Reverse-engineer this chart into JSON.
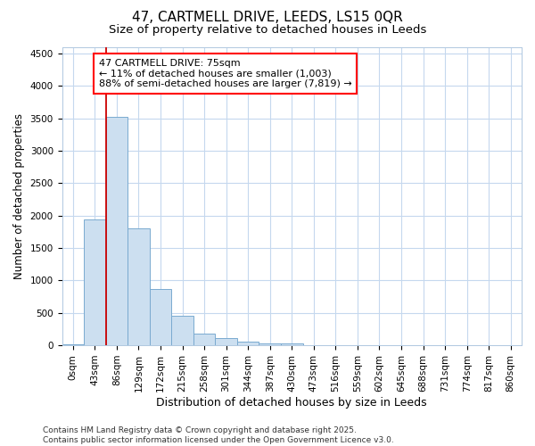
{
  "title": "47, CARTMELL DRIVE, LEEDS, LS15 0QR",
  "subtitle": "Size of property relative to detached houses in Leeds",
  "xlabel": "Distribution of detached houses by size in Leeds",
  "ylabel": "Number of detached properties",
  "bar_color": "#ccdff0",
  "bar_edge_color": "#7aaad0",
  "bar_edge_width": 0.7,
  "categories": [
    "0sqm",
    "43sqm",
    "86sqm",
    "129sqm",
    "172sqm",
    "215sqm",
    "258sqm",
    "301sqm",
    "344sqm",
    "387sqm",
    "430sqm",
    "473sqm",
    "516sqm",
    "559sqm",
    "602sqm",
    "645sqm",
    "688sqm",
    "731sqm",
    "774sqm",
    "817sqm",
    "860sqm"
  ],
  "values": [
    20,
    1940,
    3520,
    1800,
    870,
    450,
    175,
    105,
    60,
    35,
    25,
    5,
    0,
    0,
    0,
    0,
    0,
    0,
    0,
    0,
    0
  ],
  "ylim": [
    0,
    4600
  ],
  "yticks": [
    0,
    500,
    1000,
    1500,
    2000,
    2500,
    3000,
    3500,
    4000,
    4500
  ],
  "red_line_x": 2.0,
  "annotation_text": "47 CARTMELL DRIVE: 75sqm\n← 11% of detached houses are smaller (1,003)\n88% of semi-detached houses are larger (7,819) →",
  "grid_color": "#c5d8ee",
  "bg_color": "#ffffff",
  "footer": "Contains HM Land Registry data © Crown copyright and database right 2025.\nContains public sector information licensed under the Open Government Licence v3.0.",
  "title_fontsize": 11,
  "subtitle_fontsize": 9.5,
  "xlabel_fontsize": 9,
  "ylabel_fontsize": 8.5,
  "tick_fontsize": 7.5,
  "footer_fontsize": 6.5,
  "ann_fontsize": 8
}
